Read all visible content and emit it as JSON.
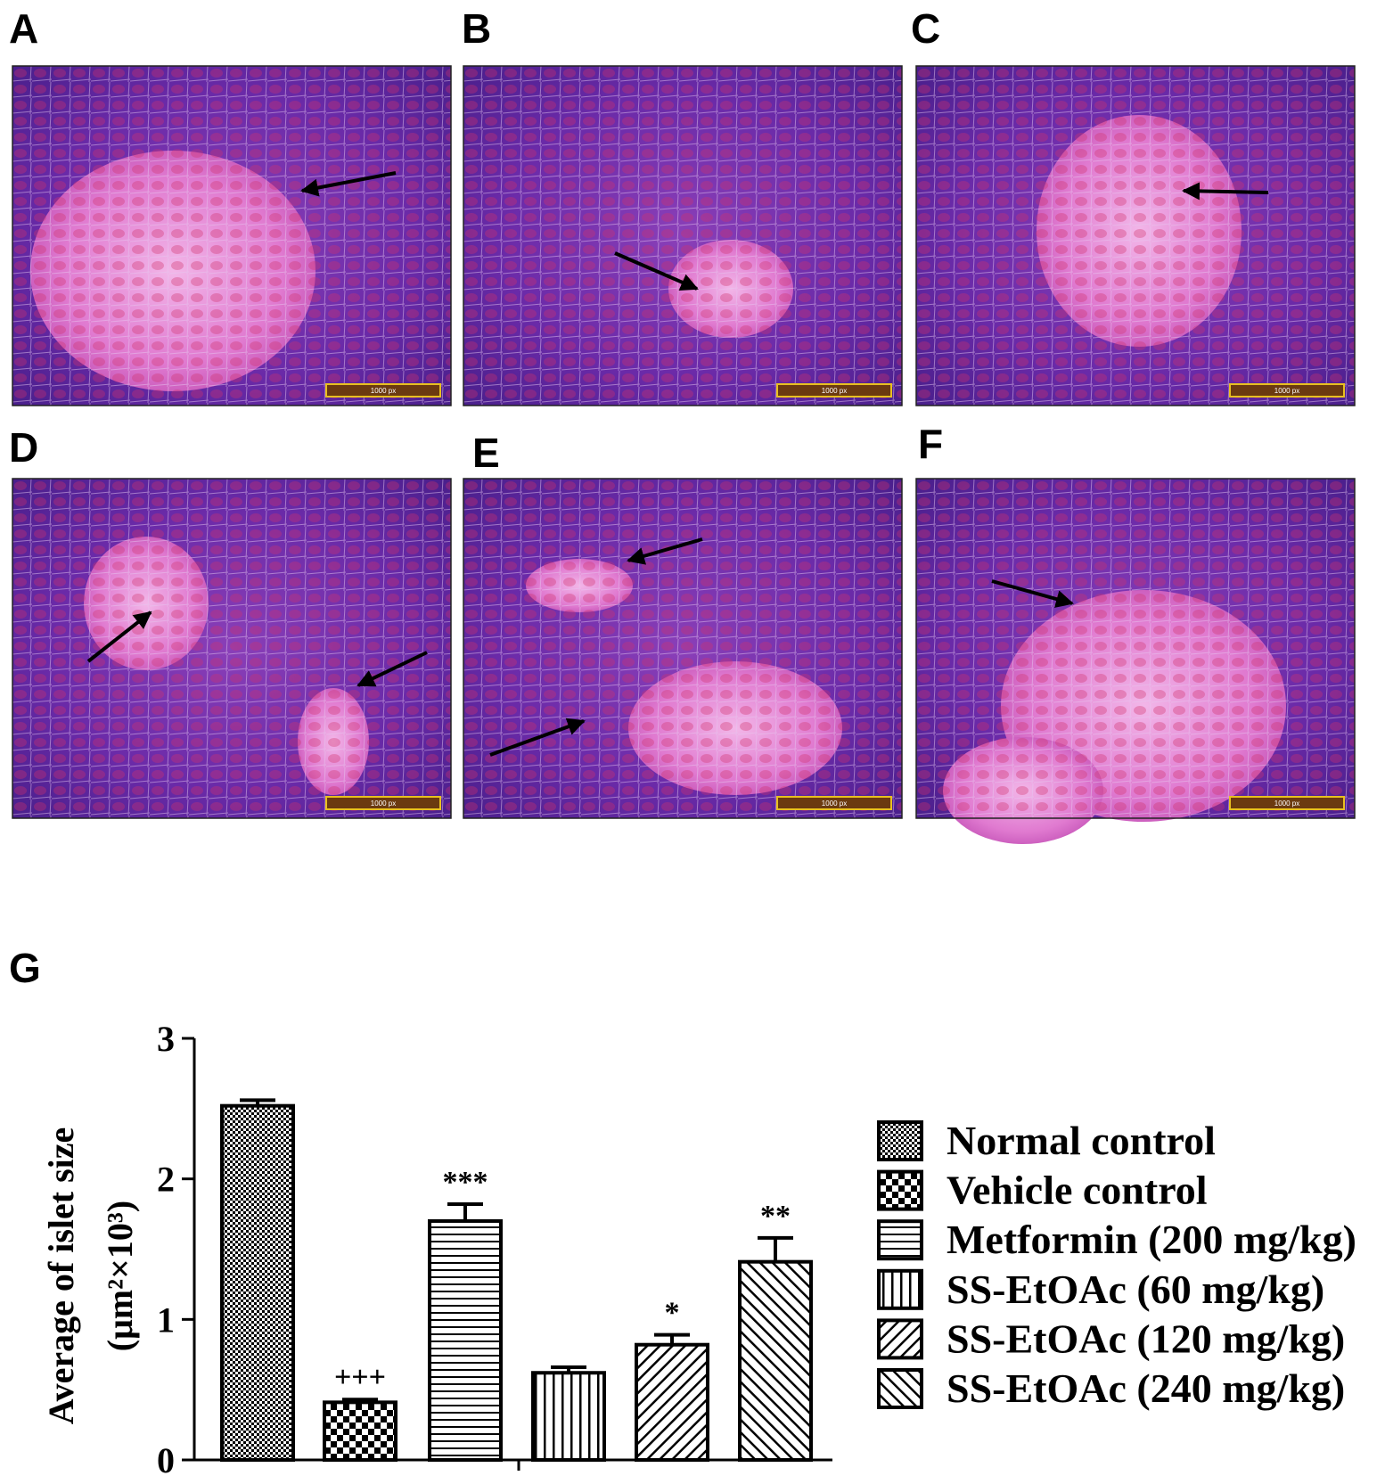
{
  "panels": [
    {
      "label": "A",
      "scale_bar": "1000 px"
    },
    {
      "label": "B",
      "scale_bar": "1000 px"
    },
    {
      "label": "C",
      "scale_bar": "1000 px"
    },
    {
      "label": "D",
      "scale_bar": "1000 px"
    },
    {
      "label": "E",
      "scale_bar": "1000 px"
    },
    {
      "label": "F",
      "scale_bar": "1000 px"
    }
  ],
  "chart_data": {
    "type": "bar",
    "panel_label": "G",
    "y_label": "Average of islet size",
    "y_label_units": "(μm²×10³)",
    "ylim": [
      0,
      3
    ],
    "yticks": [
      0,
      1,
      2,
      3
    ],
    "series": [
      {
        "name": "Normal control",
        "pattern": "checker-fine",
        "values": [
          2.52
        ],
        "errors": [
          0.04
        ]
      },
      {
        "name": "Vehicle control",
        "pattern": "checker-coarse",
        "values": [
          0.41
        ],
        "errors": [
          0.02
        ],
        "annotation": "+++"
      },
      {
        "name": "Metformin (200 mg/kg)",
        "pattern": "horizontal",
        "values": [
          1.7
        ],
        "errors": [
          0.12
        ],
        "annotation": "***"
      },
      {
        "name": "SS-EtOAc (60 mg/kg)",
        "pattern": "vertical",
        "values": [
          0.62
        ],
        "errors": [
          0.04
        ]
      },
      {
        "name": "SS-EtOAc (120 mg/kg)",
        "pattern": "diagonal-up",
        "values": [
          0.82
        ],
        "errors": [
          0.07
        ],
        "annotation": "*"
      },
      {
        "name": "SS-EtOAc (240 mg/kg)",
        "pattern": "diagonal-down",
        "values": [
          1.41
        ],
        "errors": [
          0.17
        ],
        "annotation": "**"
      }
    ]
  }
}
